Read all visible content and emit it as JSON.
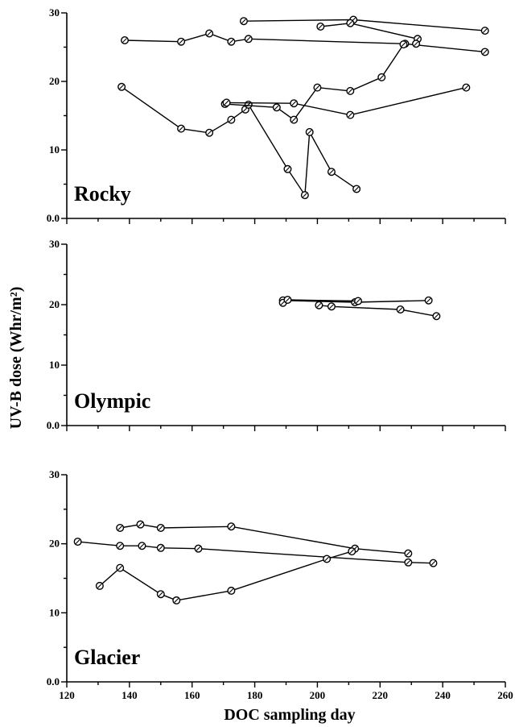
{
  "chart_data": {
    "type": "line",
    "xlabel": "DOC sampling day",
    "ylabel": "UV-B dose (Whr/m²)",
    "xlim": [
      120,
      260
    ],
    "x_ticks": [
      "120",
      "140",
      "160",
      "180",
      "200",
      "220",
      "240",
      "260"
    ],
    "y_ticks": [
      "0.0",
      "10",
      "20",
      "30"
    ],
    "panels": [
      {
        "label": "Rocky",
        "ylim": [
          0,
          30
        ],
        "series": [
          {
            "points": [
              [
                138.5,
                26.0
              ],
              [
                156.5,
                25.8
              ],
              [
                165.5,
                27.0
              ],
              [
                172.5,
                25.8
              ],
              [
                178.0,
                26.2
              ],
              [
                228.0,
                25.5
              ],
              [
                253.5,
                24.3
              ]
            ]
          },
          {
            "points": [
              [
                176.5,
                28.8
              ],
              [
                211.5,
                29.0
              ],
              [
                253.5,
                27.4
              ]
            ]
          },
          {
            "points": [
              [
                201.0,
                28.0
              ],
              [
                210.5,
                28.5
              ],
              [
                232.0,
                26.2
              ],
              [
                231.5,
                25.5
              ]
            ]
          },
          {
            "points": [
              [
                137.5,
                19.2
              ],
              [
                156.5,
                13.1
              ],
              [
                165.5,
                12.5
              ],
              [
                172.5,
                14.4
              ],
              [
                177.0,
                15.9
              ],
              [
                178.0,
                16.6
              ],
              [
                190.5,
                7.2
              ],
              [
                196.0,
                3.4
              ],
              [
                197.5,
                12.6
              ],
              [
                204.5,
                6.8
              ],
              [
                212.5,
                4.3
              ]
            ]
          },
          {
            "points": [
              [
                170.5,
                16.7
              ],
              [
                187.0,
                16.2
              ],
              [
                192.5,
                14.4
              ],
              [
                200.0,
                19.1
              ],
              [
                210.5,
                18.6
              ],
              [
                220.5,
                20.6
              ],
              [
                227.5,
                25.4
              ]
            ]
          },
          {
            "points": [
              [
                171.0,
                16.9
              ],
              [
                192.5,
                16.8
              ],
              [
                210.5,
                15.1
              ],
              [
                247.5,
                19.1
              ]
            ]
          }
        ]
      },
      {
        "label": "Olympic",
        "ylim": [
          0,
          30
        ],
        "series": [
          {
            "points": [
              [
                189.0,
                20.7
              ],
              [
                212.0,
                20.4
              ],
              [
                235.5,
                20.7
              ]
            ]
          },
          {
            "points": [
              [
                189.0,
                20.3
              ],
              [
                190.5,
                20.8
              ],
              [
                213.0,
                20.6
              ]
            ]
          },
          {
            "points": [
              [
                200.5,
                19.9
              ],
              [
                204.5,
                19.7
              ],
              [
                226.5,
                19.2
              ],
              [
                238.0,
                18.1
              ]
            ]
          }
        ]
      },
      {
        "label": "Glacier",
        "ylim": [
          0,
          30
        ],
        "series": [
          {
            "points": [
              [
                137.0,
                22.3
              ],
              [
                143.5,
                22.8
              ],
              [
                150.0,
                22.3
              ],
              [
                172.5,
                22.5
              ],
              [
                212.0,
                19.3
              ],
              [
                229.0,
                18.6
              ]
            ]
          },
          {
            "points": [
              [
                123.5,
                20.3
              ],
              [
                137.0,
                19.7
              ],
              [
                144.0,
                19.7
              ],
              [
                150.0,
                19.4
              ],
              [
                162.0,
                19.3
              ],
              [
                229.0,
                17.3
              ],
              [
                237.0,
                17.2
              ]
            ]
          },
          {
            "points": [
              [
                130.5,
                13.9
              ],
              [
                137.0,
                16.5
              ],
              [
                150.0,
                12.7
              ],
              [
                155.0,
                11.8
              ],
              [
                172.5,
                13.2
              ],
              [
                203.0,
                17.8
              ],
              [
                211.0,
                18.9
              ]
            ]
          }
        ]
      }
    ]
  }
}
